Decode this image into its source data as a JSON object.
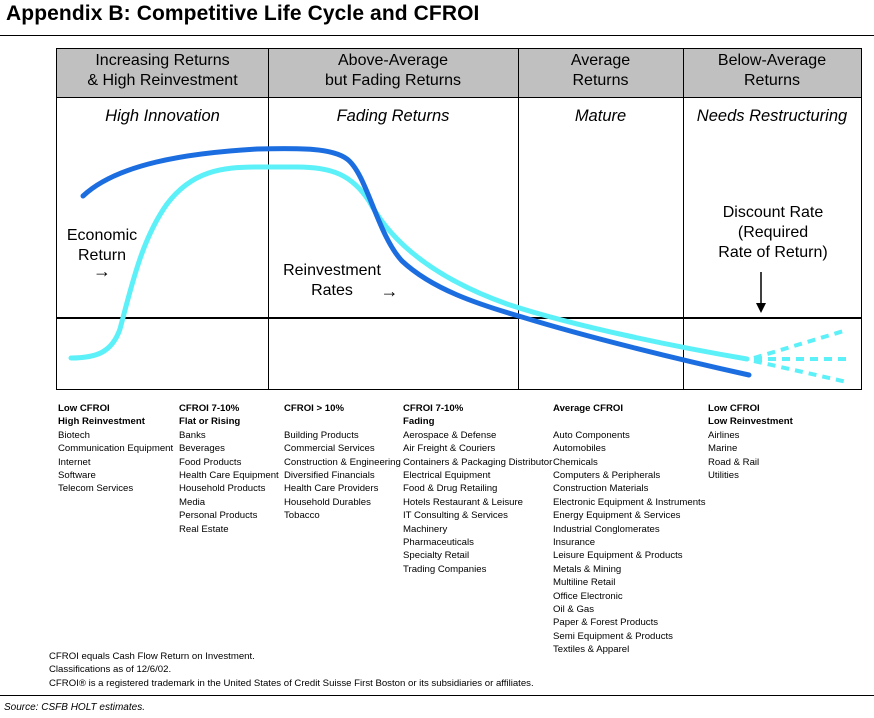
{
  "title": "Appendix B: Competitive Life Cycle and CFROI",
  "phases": [
    {
      "header_line1": "Increasing Returns",
      "header_line2": "& High Reinvestment",
      "stage": "High Innovation"
    },
    {
      "header_line1": "Above-Average",
      "header_line2": "but Fading Returns",
      "stage": "Fading Returns"
    },
    {
      "header_line1": "Average",
      "header_line2": "Returns",
      "stage": "Mature"
    },
    {
      "header_line1": "Below-Average",
      "header_line2": "Returns",
      "stage": "Needs Restructuring"
    }
  ],
  "annotations": {
    "economic_return": [
      "Economic",
      "Return"
    ],
    "reinvestment_rates": [
      "Reinvestment",
      "Rates"
    ],
    "discount_rate": [
      "Discount Rate",
      "(Required",
      "Rate of Return)"
    ]
  },
  "arrows": {
    "right": "→"
  },
  "colors": {
    "header_band": "#c0c0c0",
    "economic_return_curve": "#1c6ee0",
    "reinvestment_curve": "#5cf0f8"
  },
  "columns": [
    {
      "headers": [
        "Low CFROI",
        "High Reinvestment"
      ],
      "items": [
        "Biotech",
        "Communication Equipment",
        "Internet",
        "Software",
        "Telecom Services"
      ]
    },
    {
      "headers": [
        "CFROI 7-10%",
        "Flat or Rising"
      ],
      "items": [
        "Banks",
        "Beverages",
        "Food Products",
        "Health Care Equipment",
        "Household Products",
        "Media",
        "Personal Products",
        "Real Estate"
      ]
    },
    {
      "headers": [
        "CFROI > 10%"
      ],
      "items": [
        "Building Products",
        "Commercial Services",
        "Construction & Engineering",
        "Diversified Financials",
        "Health Care Providers",
        "Household Durables",
        "Tobacco"
      ]
    },
    {
      "headers": [
        "CFROI 7-10%",
        "Fading"
      ],
      "items": [
        "Aerospace & Defense",
        "Air Freight & Couriers",
        "Containers & Packaging Distributor",
        "Electrical Equipment",
        "Food & Drug Retailing",
        "Hotels Restaurant & Leisure",
        "IT Consulting & Services",
        "Machinery",
        "Pharmaceuticals",
        "Specialty Retail",
        "Trading Companies"
      ]
    },
    {
      "headers": [
        "Average CFROI"
      ],
      "items": [
        "Auto Components",
        "Automobiles",
        "Chemicals",
        "Computers & Peripherals",
        "Construction Materials",
        "Electronic Equipment & Instruments",
        "Energy Equipment & Services",
        "Industrial Conglomerates",
        "Insurance",
        "Leisure Equipment & Products",
        "Metals & Mining",
        "Multiline Retail",
        "Office Electronic",
        "Oil & Gas",
        "Paper & Forest Products",
        "Semi Equipment & Products",
        "Textiles & Apparel"
      ]
    },
    {
      "headers": [
        "Low CFROI",
        "Low Reinvestment"
      ],
      "items": [
        "Airlines",
        "Marine",
        "Road & Rail",
        "Utilities"
      ]
    }
  ],
  "notes": [
    "CFROI equals Cash Flow Return on Investment.",
    "Classifications as of 12/6/02.",
    "CFROI® is a registered trademark in the United States of Credit Suisse First Boston or its subsidiaries or affiliates."
  ],
  "source": "Source: CSFB HOLT estimates."
}
